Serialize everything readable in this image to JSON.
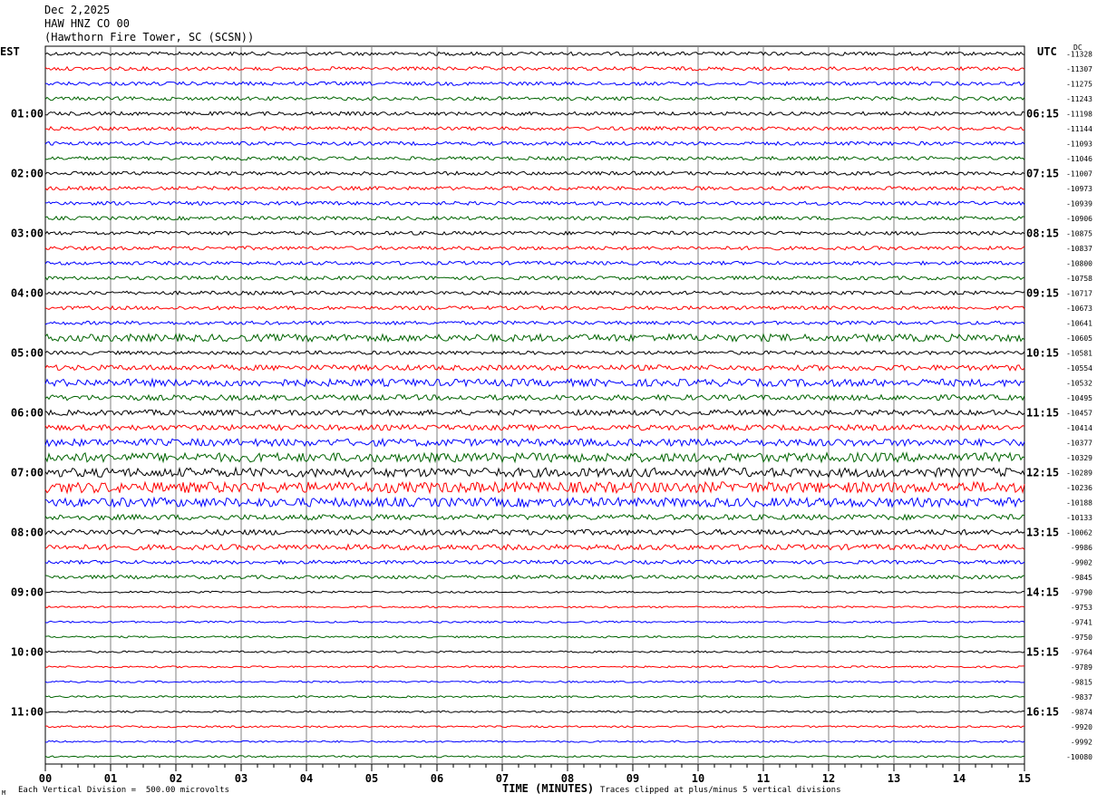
{
  "header": {
    "date": "Dec 2,2025",
    "station": "HAW HNZ CO 00",
    "location": "(Hawthorn Fire Tower, SC (SCSN))"
  },
  "left_timezone": "EST",
  "right_timezone": "UTC",
  "dc_header": "DC",
  "footer": {
    "division": "Each Vertical Division =  500.00 microvolts",
    "clipping": "Traces clipped at plus/minus 5 vertical divisions",
    "mark": "M"
  },
  "chart_data": {
    "type": "line",
    "title": "HAW HNZ CO 00",
    "xlabel": "TIME (MINUTES)",
    "ylabel": "",
    "xlim": [
      0,
      15
    ],
    "x_ticks": [
      "00",
      "01",
      "02",
      "03",
      "04",
      "05",
      "06",
      "07",
      "08",
      "09",
      "10",
      "11",
      "12",
      "13",
      "14",
      "15"
    ],
    "trace_colors": [
      "#000000",
      "#ff0000",
      "#0000ff",
      "#006400"
    ],
    "left_time_labels": [
      "01:00",
      "02:00",
      "03:00",
      "04:00",
      "05:00",
      "06:00",
      "07:00",
      "08:00",
      "09:00",
      "10:00",
      "11:00"
    ],
    "right_time_labels": [
      "06:15",
      "07:15",
      "08:15",
      "09:15",
      "10:15",
      "11:15",
      "12:15",
      "13:15",
      "14:15",
      "15:15",
      "16:15"
    ],
    "dc_offsets": [
      "-11328",
      "-11307",
      "-11275",
      "-11243",
      "-11198",
      "-11144",
      "-11093",
      "-11046",
      "-11007",
      "-10973",
      "-10939",
      "-10906",
      "-10875",
      "-10837",
      "-10800",
      "-10758",
      "-10717",
      "-10673",
      "-10641",
      "-10605",
      "-10581",
      "-10554",
      "-10532",
      "-10495",
      "-10457",
      "-10414",
      "-10377",
      "-10329",
      "-10289",
      "-10236",
      "-10188",
      "-10133",
      "-10062",
      "-9986",
      "-9902",
      "-9845",
      "-9790",
      "-9753",
      "-9741",
      "-9750",
      "-9764",
      "-9789",
      "-9815",
      "-9837",
      "-9874",
      "-9920",
      "-9992",
      "-10080"
    ],
    "trace_noise": [
      2,
      2,
      2,
      2,
      2,
      2,
      2,
      2,
      2,
      2,
      2,
      2,
      2,
      2,
      2,
      2,
      2,
      2,
      2,
      4,
      2,
      3,
      4,
      3,
      3,
      3,
      4,
      5,
      5,
      6,
      5,
      3,
      3,
      3,
      2,
      2,
      1,
      1,
      1,
      1,
      1,
      1,
      1,
      1,
      1,
      1,
      1,
      1
    ]
  }
}
